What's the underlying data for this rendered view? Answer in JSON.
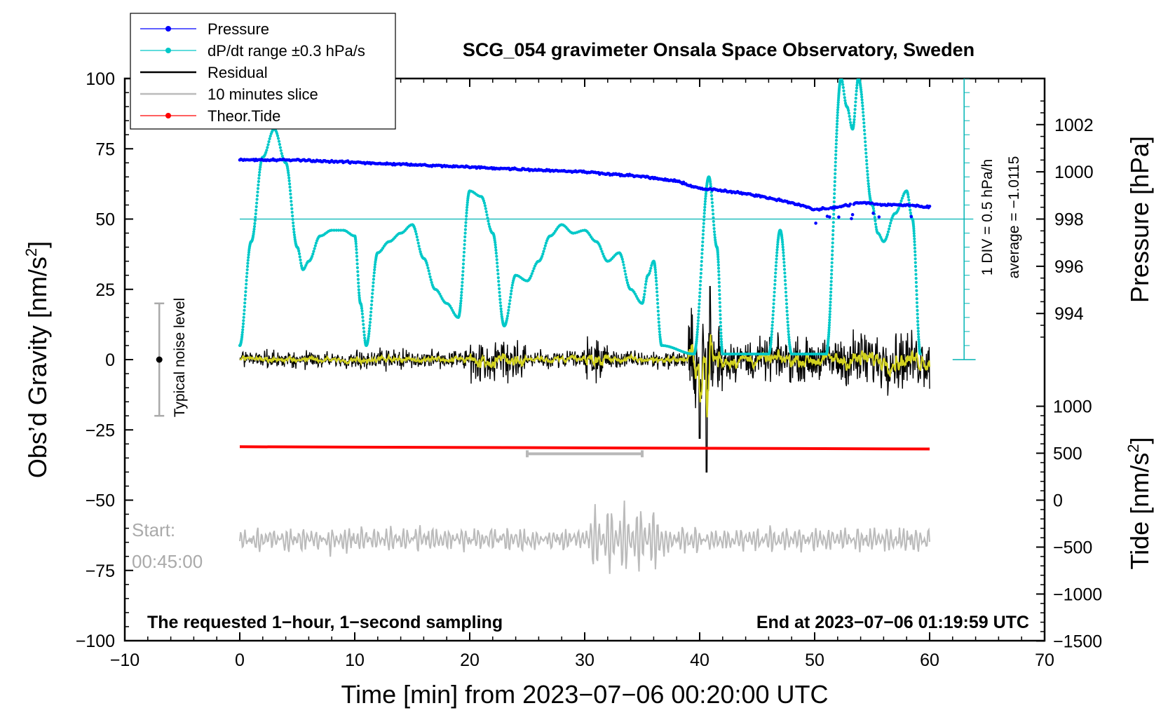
{
  "chart_data": {
    "type": "line",
    "title": "SCG_054 gravimeter Onsala Space Observatory, Sweden",
    "xlabel": "Time [min] from 2023−07−06 00:20:00 UTC",
    "ylabel_prefix": "Obs’d Gravity [nm/s",
    "ylabel_sup": "2",
    "ylabel_suffix": "]",
    "xlim": [
      -10,
      70
    ],
    "ylim": [
      -100,
      100
    ],
    "x_ticks": [
      "−10",
      "0",
      "10",
      "20",
      "30",
      "40",
      "50",
      "60",
      "70"
    ],
    "y_ticks": [
      "100",
      "75",
      "50",
      "25",
      "0",
      "−25",
      "−50",
      "−75",
      "−100"
    ],
    "pressure_axis": {
      "label": "Pressure [hPa]",
      "ticks": [
        "1002",
        "1000",
        "998",
        "996",
        "994"
      ],
      "values": [
        1002,
        1000,
        998,
        996,
        994
      ]
    },
    "tide_axis": {
      "label_prefix": "Tide [nm/s",
      "label_sup": "2",
      "label_suffix": "]",
      "ticks": [
        "1000",
        "500",
        "0",
        "−500",
        "−1000",
        "−1500"
      ],
      "values": [
        1000,
        500,
        0,
        -500,
        -1000,
        -1500
      ]
    },
    "dpdt_scale": {
      "div_label": "1 DIV = 0.5 hPa/h",
      "average_label": "average = −1.0115",
      "average_value": -1.0115
    },
    "legend": {
      "position": "top-left",
      "entries": [
        {
          "label": "Pressure",
          "color": "#0000ff",
          "marker": true
        },
        {
          "label": "dP/dt range ±0.3 hPa/s",
          "color": "#00c8c8",
          "marker": true
        },
        {
          "label": "Residual",
          "color": "#000000",
          "marker": false
        },
        {
          "label": "10 minutes slice",
          "color": "#bbbbbb",
          "marker": false
        },
        {
          "label": "Theor.Tide",
          "color": "#ff0000",
          "marker": true
        }
      ]
    },
    "annotations": {
      "noise_label": "Typical noise level",
      "noise_range": [
        -20,
        20
      ],
      "slice_start_label": "Start:",
      "slice_start_time": "00:45:00",
      "slice_range_min": [
        25,
        35
      ],
      "bottom_left_note": "The requested 1−hour, 1−second sampling",
      "bottom_right_note": "End at 2023−07−06 01:19:59 UTC"
    },
    "series": {
      "pressure_hPa": {
        "x": [
          0,
          5,
          10,
          15,
          20,
          25,
          30,
          35,
          38,
          40,
          42,
          45,
          48,
          50,
          52,
          54,
          56,
          58,
          60
        ],
        "y": [
          1000.5,
          1000.5,
          1000.4,
          1000.3,
          1000.2,
          1000.1,
          1000.0,
          999.8,
          999.6,
          999.3,
          999.2,
          999.0,
          998.7,
          998.4,
          998.5,
          998.7,
          998.6,
          998.6,
          998.5
        ]
      },
      "dpdt_display_nm": {
        "x": [
          0,
          1,
          2,
          3,
          4,
          5,
          5.5,
          6,
          7,
          8,
          9,
          10,
          10.5,
          11,
          12,
          13,
          14,
          15,
          16,
          17,
          18,
          19,
          20,
          21,
          22,
          23,
          24,
          25,
          26,
          27,
          28,
          29,
          30,
          31,
          32,
          33,
          34,
          35,
          35.5,
          36,
          36.7,
          39.5,
          40.8,
          41.5,
          42,
          46,
          47,
          48,
          51,
          52.3,
          52.8,
          53.3,
          53.8,
          55,
          55.5,
          56,
          57,
          58,
          58.5,
          59.2
        ],
        "y": [
          5,
          42,
          72,
          82,
          70,
          40,
          32,
          35,
          44,
          46,
          46,
          44,
          20,
          5,
          38,
          42,
          45,
          48,
          36,
          25,
          20,
          15,
          60,
          58,
          45,
          12,
          30,
          28,
          35,
          44,
          48,
          45,
          46,
          42,
          35,
          38,
          25,
          20,
          30,
          35,
          5,
          2,
          65,
          40,
          2,
          2,
          46,
          2,
          2,
          100,
          90,
          82,
          100,
          55,
          45,
          42,
          52,
          60,
          50,
          2
        ]
      },
      "tide_nm": {
        "x": [
          0,
          20,
          40,
          60
        ],
        "y": [
          -31,
          -31.5,
          -31.8,
          -31.8
        ]
      }
    }
  }
}
